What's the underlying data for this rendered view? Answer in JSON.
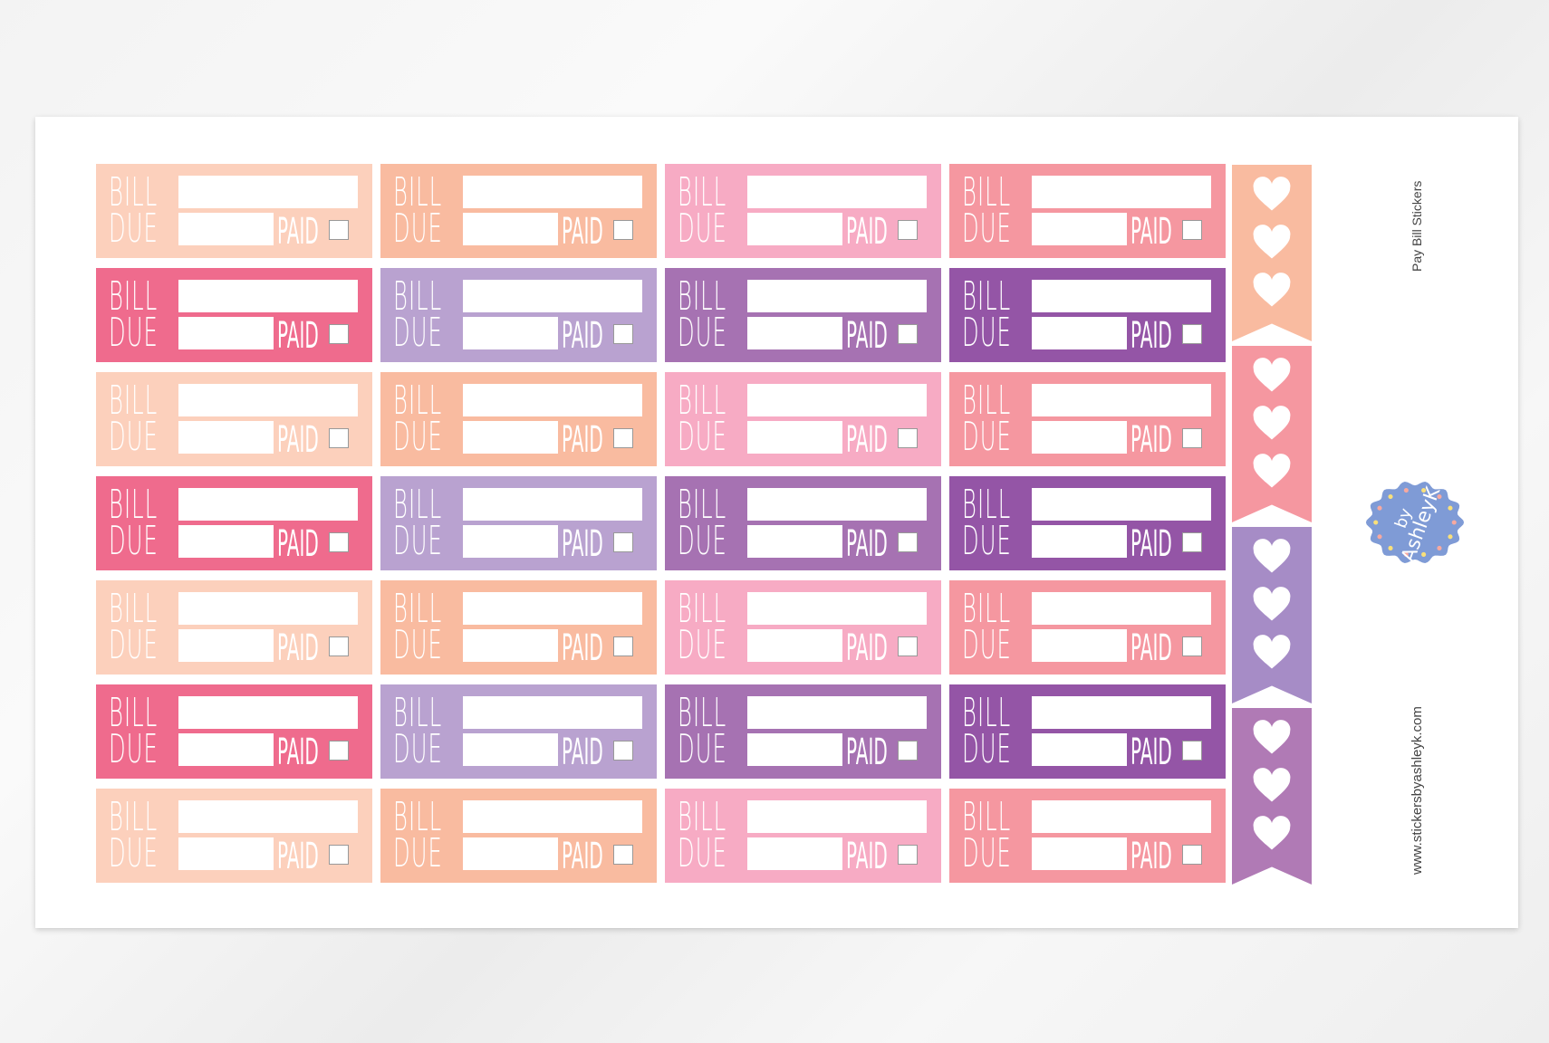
{
  "sticker_text": {
    "line1": "BILL",
    "line2": "DUE",
    "paid": "PAID"
  },
  "rows": [
    [
      "#fcd0bc",
      "#f9bba0",
      "#f7abc4",
      "#f597a0"
    ],
    [
      "#ef6b8d",
      "#b9a2d0",
      "#a672b2",
      "#9455a6"
    ],
    [
      "#fcd0bc",
      "#f9bba0",
      "#f7abc4",
      "#f597a0"
    ],
    [
      "#ef6b8d",
      "#b9a2d0",
      "#a672b2",
      "#9455a6"
    ],
    [
      "#fcd0bc",
      "#f9bba0",
      "#f7abc4",
      "#f597a0"
    ],
    [
      "#ef6b8d",
      "#b9a2d0",
      "#a672b2",
      "#9455a6"
    ],
    [
      "#fcd0bc",
      "#f9bba0",
      "#f7abc4",
      "#f597a0"
    ]
  ],
  "flags": [
    {
      "color": "#f9bba0",
      "icon": "heart-icon",
      "count": 3
    },
    {
      "color": "#f597a0",
      "icon": "heart-icon",
      "count": 3
    },
    {
      "color": "#a68cc6",
      "icon": "heart-icon",
      "count": 3
    },
    {
      "color": "#b07ab5",
      "icon": "heart-icon",
      "count": 3
    }
  ],
  "sheet_title": "Pay Bill Stickers",
  "website": "www.stickersbyashleyk.com",
  "logo": {
    "text_line1": "by",
    "text_line2": "AshleyK",
    "color": "#7f9bd6"
  }
}
